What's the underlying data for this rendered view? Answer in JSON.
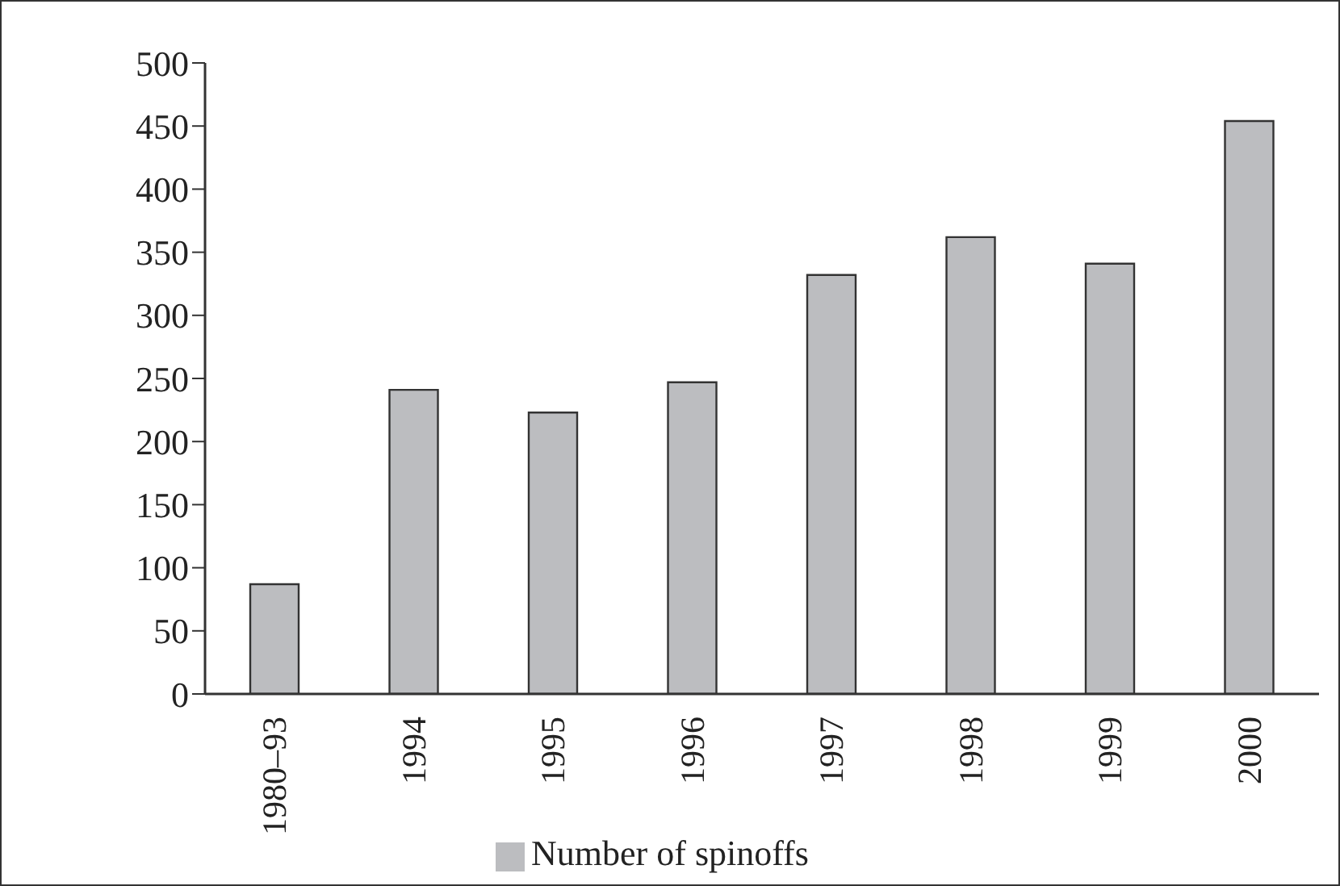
{
  "chart_data": {
    "type": "bar",
    "categories": [
      "1980–93",
      "1994",
      "1995",
      "1996",
      "1997",
      "1998",
      "1999",
      "2000"
    ],
    "series": [
      {
        "name": "Number of spinoffs",
        "color": "#bcbdc0",
        "values": [
          87,
          241,
          223,
          247,
          332,
          362,
          341,
          454
        ]
      }
    ],
    "ylim": [
      0,
      500
    ],
    "yticks": [
      0,
      50,
      100,
      150,
      200,
      250,
      300,
      350,
      400,
      450,
      500
    ],
    "legend": "bottom"
  }
}
